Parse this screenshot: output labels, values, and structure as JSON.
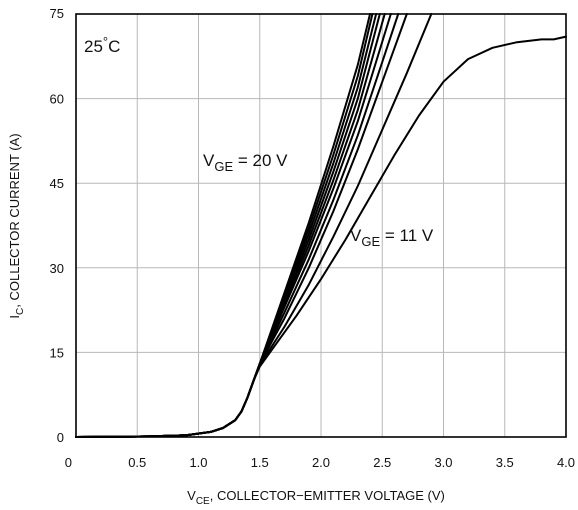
{
  "chart_data": {
    "type": "line",
    "xlabel": {
      "main": "V",
      "sub": "CE",
      "rest": ", COLLECTOR−EMITTER VOLTAGE (V)"
    },
    "ylabel": {
      "main": "I",
      "sub": "C",
      "rest": ", COLLECTOR CURRENT (A)"
    },
    "xlim": [
      0,
      4.0
    ],
    "ylim": [
      0,
      75
    ],
    "grid": true,
    "x_ticks": [
      0,
      0.5,
      1.0,
      1.5,
      2.0,
      2.5,
      3.0,
      3.5,
      4.0
    ],
    "x_tick_labels": [
      "0",
      "0.5",
      "1.0",
      "1.5",
      "2.0",
      "2.5",
      "3.0",
      "3.5",
      "4.0"
    ],
    "y_ticks": [
      0,
      15,
      30,
      45,
      60,
      75
    ],
    "y_tick_labels": [
      "0",
      "15",
      "30",
      "45",
      "60",
      "75"
    ],
    "annotations": {
      "temperature": {
        "main": "25",
        "sup": "°",
        "rest": "C"
      },
      "vge_top": {
        "main": "V",
        "sub": "GE",
        "rest": " = 20 V"
      },
      "vge_bottom": {
        "main": "V",
        "sub": "GE",
        "rest": " = 11 V"
      }
    },
    "series": [
      {
        "x": [
          0,
          0.6,
          0.9,
          1.1,
          1.2,
          1.3,
          1.35,
          1.4,
          1.45,
          1.5,
          1.6,
          1.8,
          2.0,
          2.2,
          2.4,
          2.6,
          2.8,
          3.0,
          3.2,
          3.4,
          3.6,
          3.8,
          3.9,
          4.0
        ],
        "y": [
          0,
          0.1,
          0.3,
          0.9,
          1.6,
          3.0,
          4.5,
          7.0,
          10.0,
          12.5,
          15.5,
          21.5,
          28.0,
          35.0,
          42.5,
          50.0,
          57.0,
          63.0,
          67.0,
          69.0,
          70.0,
          70.5,
          70.5,
          71.0
        ]
      },
      {
        "x": [
          0,
          0.6,
          0.9,
          1.1,
          1.2,
          1.3,
          1.35,
          1.4,
          1.45,
          1.5,
          1.7,
          1.9,
          2.1,
          2.3,
          2.5,
          2.7,
          2.9
        ],
        "y": [
          0,
          0.1,
          0.3,
          0.9,
          1.6,
          3.0,
          4.5,
          7.0,
          10.0,
          12.8,
          19.5,
          27.0,
          35.5,
          44.5,
          54.5,
          64.5,
          75.0
        ]
      },
      {
        "x": [
          0,
          0.6,
          0.9,
          1.1,
          1.2,
          1.3,
          1.35,
          1.4,
          1.45,
          1.5,
          1.7,
          1.9,
          2.1,
          2.3,
          2.5,
          2.7
        ],
        "y": [
          0,
          0.1,
          0.3,
          0.9,
          1.6,
          3.0,
          4.5,
          7.0,
          10.0,
          13.0,
          21.0,
          30.0,
          40.0,
          51.0,
          63.0,
          75.0
        ]
      },
      {
        "x": [
          0,
          0.6,
          0.9,
          1.1,
          1.2,
          1.3,
          1.35,
          1.4,
          1.45,
          1.5,
          1.7,
          1.9,
          2.1,
          2.3,
          2.5,
          2.63
        ],
        "y": [
          0,
          0.1,
          0.3,
          0.9,
          1.6,
          3.0,
          4.5,
          7.0,
          10.0,
          13.0,
          22.0,
          31.5,
          42.0,
          53.5,
          66.5,
          75.0
        ]
      },
      {
        "x": [
          0,
          0.6,
          0.9,
          1.1,
          1.2,
          1.3,
          1.35,
          1.4,
          1.45,
          1.5,
          1.7,
          1.9,
          2.1,
          2.3,
          2.57
        ],
        "y": [
          0,
          0.1,
          0.3,
          0.9,
          1.6,
          3.0,
          4.5,
          7.0,
          10.0,
          13.0,
          23.0,
          33.0,
          44.0,
          56.0,
          75.0
        ]
      },
      {
        "x": [
          0,
          0.6,
          0.9,
          1.1,
          1.2,
          1.3,
          1.35,
          1.4,
          1.45,
          1.5,
          1.7,
          1.9,
          2.1,
          2.3,
          2.52
        ],
        "y": [
          0,
          0.1,
          0.3,
          0.9,
          1.6,
          3.0,
          4.5,
          7.0,
          10.0,
          13.0,
          23.5,
          34.0,
          45.5,
          58.0,
          75.0
        ]
      },
      {
        "x": [
          0,
          0.6,
          0.9,
          1.1,
          1.2,
          1.3,
          1.35,
          1.4,
          1.45,
          1.5,
          1.7,
          1.9,
          2.1,
          2.3,
          2.48
        ],
        "y": [
          0,
          0.1,
          0.3,
          0.9,
          1.6,
          3.0,
          4.5,
          7.0,
          10.0,
          13.0,
          24.0,
          35.0,
          47.0,
          60.0,
          75.0
        ]
      },
      {
        "x": [
          0,
          0.6,
          0.9,
          1.1,
          1.2,
          1.3,
          1.35,
          1.4,
          1.45,
          1.5,
          1.7,
          1.9,
          2.1,
          2.3,
          2.45
        ],
        "y": [
          0,
          0.1,
          0.3,
          0.9,
          1.6,
          3.0,
          4.5,
          7.0,
          10.0,
          13.0,
          24.5,
          36.0,
          48.5,
          62.0,
          75.0
        ]
      },
      {
        "x": [
          0,
          0.6,
          0.9,
          1.1,
          1.2,
          1.3,
          1.35,
          1.4,
          1.45,
          1.5,
          1.7,
          1.9,
          2.1,
          2.3,
          2.42
        ],
        "y": [
          0,
          0.1,
          0.3,
          0.9,
          1.6,
          3.0,
          4.5,
          7.0,
          10.0,
          13.0,
          25.0,
          37.0,
          50.0,
          64.0,
          75.0
        ]
      },
      {
        "x": [
          0,
          0.6,
          0.9,
          1.1,
          1.2,
          1.3,
          1.35,
          1.4,
          1.45,
          1.5,
          1.7,
          1.9,
          2.1,
          2.3,
          2.4
        ],
        "y": [
          0,
          0.1,
          0.3,
          0.9,
          1.6,
          3.0,
          4.5,
          7.0,
          10.0,
          13.0,
          25.5,
          38.0,
          51.5,
          66.0,
          75.0
        ]
      }
    ]
  }
}
